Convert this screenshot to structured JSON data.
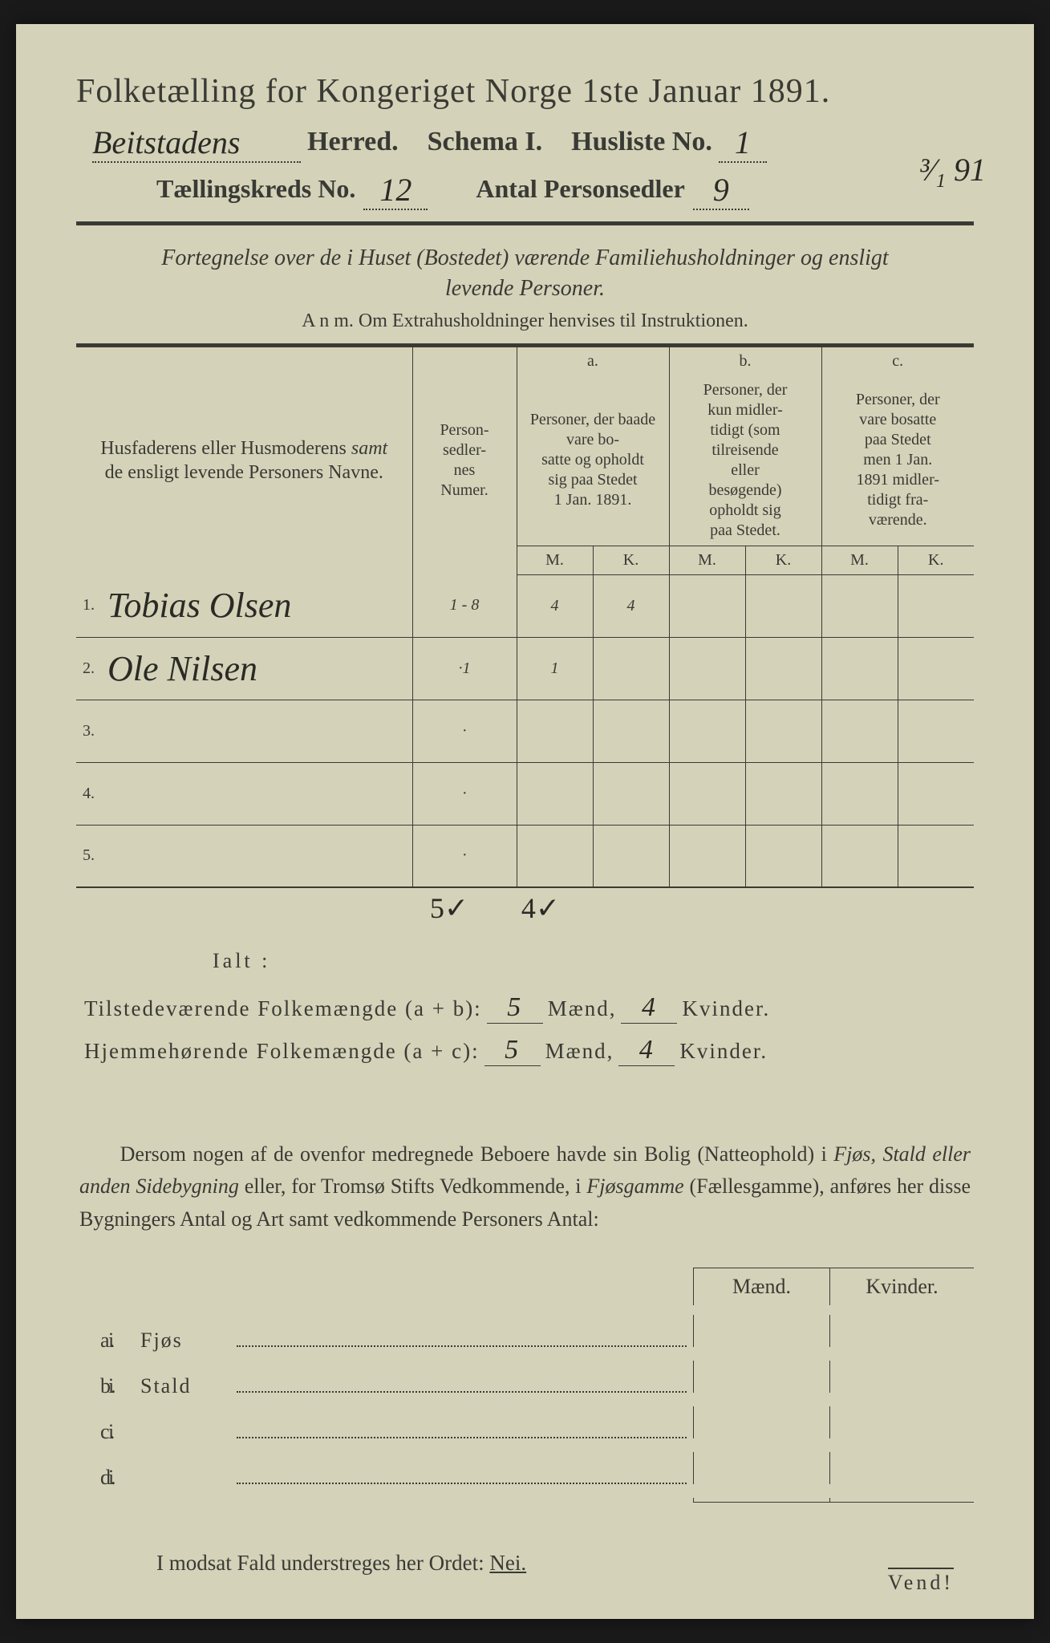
{
  "colors": {
    "paper": "#d4d2b8",
    "ink": "#3a3a35",
    "handwriting": "#2a2a25",
    "background": "#1a1a1a"
  },
  "header": {
    "title": "Folketælling for Kongeriget Norge 1ste Januar 1891.",
    "herred_value": "Beitstadens",
    "herred_label": "Herred.",
    "schema_label": "Schema I.",
    "husliste_label": "Husliste No.",
    "husliste_value": "1",
    "date_value": "³⁄₁ 91",
    "kreds_label": "Tællingskreds No.",
    "kreds_value": "12",
    "personsedler_label": "Antal Personsedler",
    "personsedler_value": "9"
  },
  "subtitle": {
    "line1": "Fortegnelse over de i Huset (Bostedet) værende Familiehusholdninger og ensligt",
    "line2": "levende Personer.",
    "anm": "A n m.  Om Extrahusholdninger henvises til Instruktionen."
  },
  "table": {
    "col_name": "Husfaderens eller Husmoderens samt de ensligt levende Personers Navne.",
    "col_num": "Person-sedler-nes Numer.",
    "col_a_label": "a.",
    "col_a": "Personer, der baade vare bosatte og opholdt sig paa Stedet 1 Jan. 1891.",
    "col_b_label": "b.",
    "col_b": "Personer, der kun midler-tidigt (som tilreisende eller besøgende) opholdt sig paa Stedet.",
    "col_c_label": "c.",
    "col_c": "Personer, der vare bosatte paa Stedet men 1 Jan. 1891 midler-tidigt fra-værende.",
    "M": "M.",
    "K": "K.",
    "rows": [
      {
        "n": "1.",
        "name": "Tobias Olsen",
        "num": "1 - 8",
        "aM": "4",
        "aK": "4",
        "bM": "",
        "bK": "",
        "cM": "",
        "cK": ""
      },
      {
        "n": "2.",
        "name": "Ole Nilsen",
        "num": "·1",
        "aM": "1",
        "aK": "",
        "bM": "",
        "bK": "",
        "cM": "",
        "cK": ""
      },
      {
        "n": "3.",
        "name": "",
        "num": "·",
        "aM": "",
        "aK": "",
        "bM": "",
        "bK": "",
        "cM": "",
        "cK": ""
      },
      {
        "n": "4.",
        "name": "",
        "num": "·",
        "aM": "",
        "aK": "",
        "bM": "",
        "bK": "",
        "cM": "",
        "cK": ""
      },
      {
        "n": "5.",
        "name": "",
        "num": "·",
        "aM": "",
        "aK": "",
        "bM": "",
        "bK": "",
        "cM": "",
        "cK": ""
      }
    ],
    "col_totals": {
      "aM": "5✓",
      "aK": "4✓"
    }
  },
  "totals": {
    "ialt": "Ialt :",
    "tilstede_label": "Tilstedeværende Folkemængde (a + b):",
    "hjemme_label": "Hjemmehørende Folkemængde (a + c):",
    "maend": "Mænd,",
    "kvinder": "Kvinder.",
    "tilstede_m": "5",
    "tilstede_k": "4",
    "hjemme_m": "5",
    "hjemme_k": "4"
  },
  "paragraph": "Dersom nogen af de ovenfor medregnede Beboere havde sin Bolig (Natteophold) i Fjøs, Stald eller anden Sidebygning eller, for Tromsø Stifts Vedkommende, i Fjøsgamme (Fællesgamme), anføres her disse Bygningers Antal og Art samt vedkommende Personers Antal:",
  "buildings": {
    "maend": "Mænd.",
    "kvinder": "Kvinder.",
    "rows": [
      {
        "l": "a.",
        "i": "i",
        "t": "Fjøs"
      },
      {
        "l": "b.",
        "i": "i",
        "t": "Stald"
      },
      {
        "l": "c.",
        "i": "i",
        "t": ""
      },
      {
        "l": "d.",
        "i": "i",
        "t": ""
      }
    ]
  },
  "nei": {
    "text": "I modsat Fald understreges her Ordet:",
    "word": "Nei."
  },
  "vend": "Vend!"
}
